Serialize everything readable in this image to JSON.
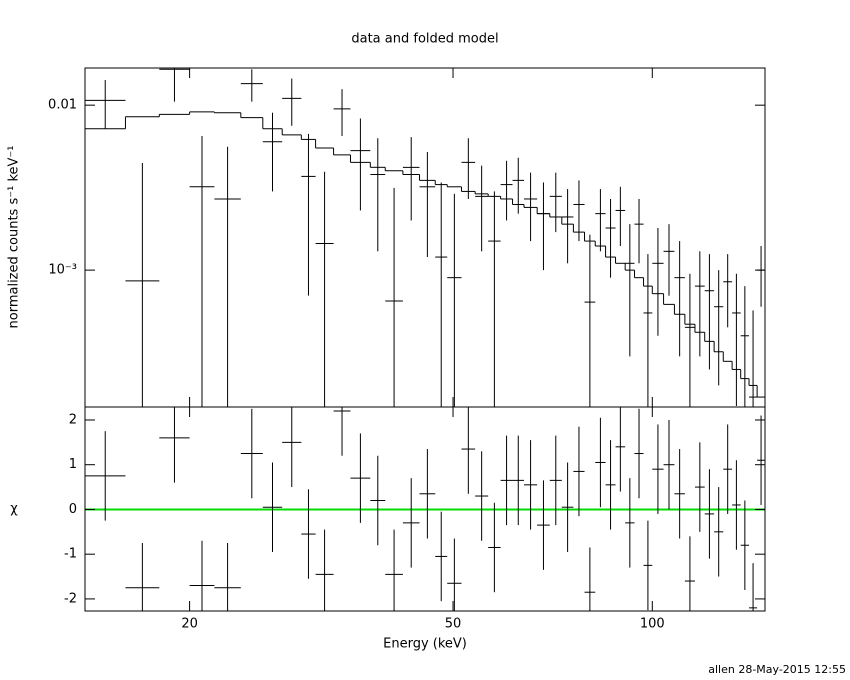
{
  "chart_data": [
    {
      "type": "errorbar",
      "title": "data and folded model",
      "ylabel": "normalized counts s⁻¹ keV⁻¹",
      "log_x": true,
      "log_y": true,
      "ylim": [
        0.000148,
        0.0168
      ],
      "yticks": [
        0.01,
        {
          "value": 0.001,
          "label": "10⁻³"
        }
      ],
      "bins_low": [
        13.9,
        16.0,
        18.0,
        20.0,
        21.8,
        23.9,
        25.8,
        27.6,
        29.5,
        31.0,
        33.0,
        35.0,
        37.5,
        39.5,
        42.0,
        44.5,
        47.0,
        49.0,
        51.5,
        54,
        56.5,
        59,
        61.5,
        64,
        67,
        70,
        73,
        76,
        79,
        82,
        85,
        88,
        91,
        94,
        97,
        100,
        104,
        108,
        112,
        116,
        120,
        124,
        128,
        132,
        136,
        140,
        144
      ],
      "bins_high": [
        16.0,
        18.0,
        20.0,
        21.8,
        23.9,
        25.8,
        27.6,
        29.5,
        31.0,
        33.0,
        35.0,
        37.5,
        39.5,
        42.0,
        44.5,
        47.0,
        49.0,
        51.5,
        54,
        56.5,
        59,
        61.5,
        64,
        67,
        70,
        73,
        76,
        79,
        82,
        85,
        88,
        91,
        94,
        97,
        100,
        104,
        108,
        112,
        116,
        120,
        124,
        128,
        132,
        136,
        140,
        144,
        148
      ],
      "series": [
        {
          "color": "#000000",
          "values": [
            0.0107,
            0.00086,
            0.0165,
            0.0032,
            0.0027,
            0.0135,
            0.006,
            0.011,
            0.0037,
            0.00145,
            0.0095,
            0.0053,
            0.0038,
            0.00065,
            0.0042,
            0.0032,
            0.0012,
            0.0009,
            0.0045,
            0.0028,
            0.0015,
            0.0033,
            0.0035,
            0.0027,
            0.0022,
            0.0028,
            0.0021,
            0.0025,
            0.00064,
            0.0022,
            0.0018,
            0.0023,
            0.0011,
            0.0019,
            0.00055,
            0.0011,
            0.0013,
            0.0009,
            0.00045,
            0.0008,
            0.00075,
            0.0006,
            0.00085,
            0.00055,
            0.0004,
            0.00017,
            0.001
          ],
          "errors": [
            0.0035,
            0.0036,
            0.006,
            0.0033,
            0.0029,
            0.003,
            0.003,
            0.0035,
            0.003,
            0.0025,
            0.003,
            0.003,
            0.0025,
            0.0025,
            0.0022,
            0.002,
            0.0022,
            0.002,
            0.0018,
            0.0015,
            0.0015,
            0.0013,
            0.0013,
            0.0012,
            0.0012,
            0.0011,
            0.001,
            0.001,
            0.001,
            0.0009,
            0.0009,
            0.0009,
            0.0008,
            0.0008,
            0.0007,
            0.0007,
            0.0006,
            0.0006,
            0.0005,
            0.0005,
            0.0005,
            0.0004,
            0.0004,
            0.0004,
            0.0004,
            0.0004,
            0.0004
          ]
        },
        {
          "color": "#000000",
          "values": [
            0.0072,
            0.0085,
            0.0088,
            0.0091,
            0.009,
            0.0084,
            0.0072,
            0.0066,
            0.0062,
            0.0055,
            0.005,
            0.0045,
            0.0042,
            0.004,
            0.0038,
            0.0035,
            0.0033,
            0.0032,
            0.003,
            0.0029,
            0.0028,
            0.0027,
            0.0025,
            0.0024,
            0.0022,
            0.0021,
            0.0019,
            0.0017,
            0.0015,
            0.0014,
            0.0012,
            0.0011,
            0.001,
            0.0009,
            0.0008,
            0.00072,
            0.00062,
            0.00054,
            0.00047,
            0.00042,
            0.00037,
            0.00032,
            0.00028,
            0.00025,
            0.00022,
            0.0002,
            0.00017
          ]
        }
      ]
    },
    {
      "type": "errorbar",
      "ylabel": "χ",
      "xlabel": "Energy (keV)",
      "xlim": [
        13.9,
        148
      ],
      "xticks": [
        20,
        50,
        100
      ],
      "ylim": [
        -2.27,
        2.29
      ],
      "yticks": [
        -2,
        -1,
        0,
        1,
        2
      ],
      "hline": {
        "value": 0,
        "color": "#00dd00"
      },
      "series": [
        {
          "color": "#000000",
          "values": [
            0.75,
            -1.75,
            1.6,
            -1.7,
            -1.75,
            1.25,
            0.05,
            1.5,
            -0.55,
            -1.45,
            2.2,
            0.7,
            0.2,
            -1.45,
            -0.3,
            0.35,
            -1.05,
            -1.65,
            1.35,
            0.3,
            -0.85,
            0.65,
            0.65,
            0.55,
            -0.35,
            0.65,
            0.05,
            0.85,
            -1.85,
            1.05,
            0.55,
            1.4,
            -0.3,
            1.25,
            -1.25,
            0.9,
            1.0,
            0.35,
            -1.6,
            0.5,
            -0.1,
            -0.5,
            0.9,
            0.1,
            -0.8,
            -2.2,
            1.1
          ],
          "errors": [
            1,
            1,
            1,
            1,
            1,
            1,
            1,
            1,
            1,
            1,
            1,
            1,
            1,
            1,
            1,
            1,
            1,
            1,
            1,
            1,
            1,
            1,
            1,
            1,
            1,
            1,
            1,
            1,
            1,
            1,
            1,
            1,
            1,
            1,
            1,
            1,
            1,
            1,
            1,
            1,
            1,
            1,
            1,
            1,
            1,
            1,
            1
          ]
        }
      ]
    }
  ],
  "footer": "allen 28-May-2015 12:55"
}
